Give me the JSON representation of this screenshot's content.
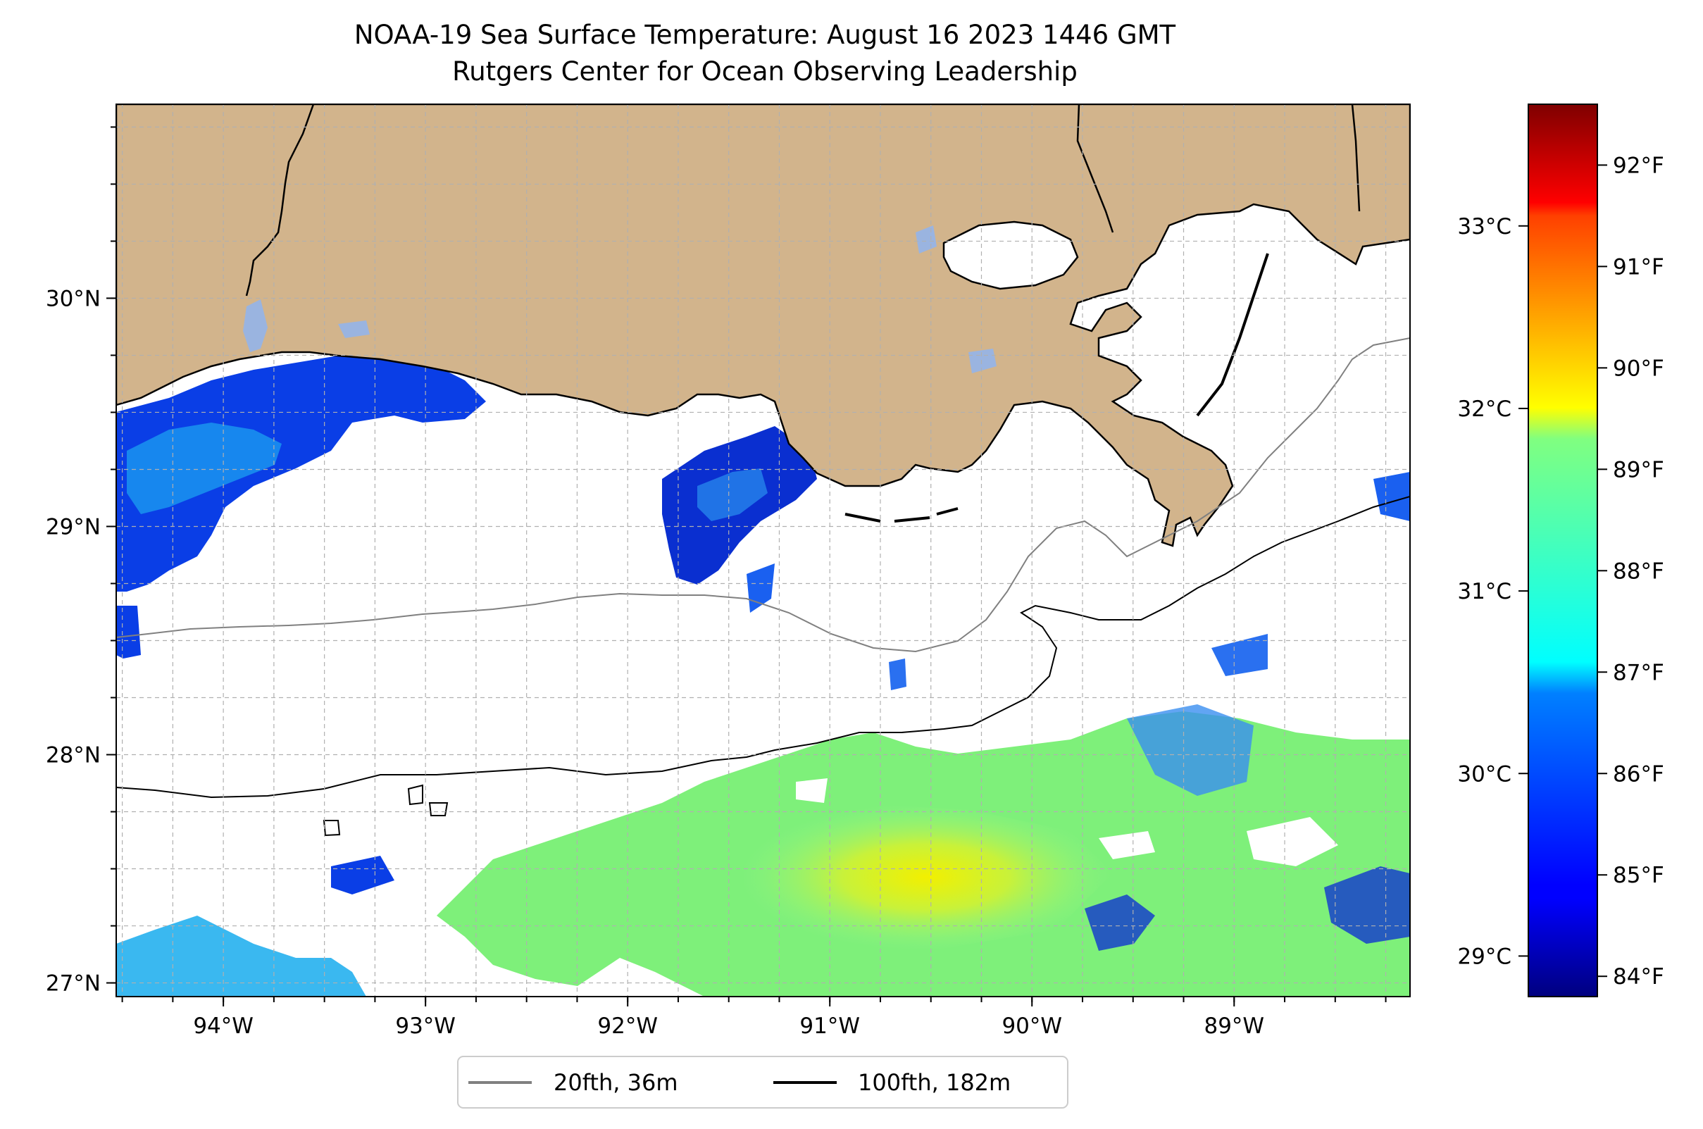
{
  "title": "NOAA-19 Sea Surface Temperature: August 16 2023 1446 GMT",
  "subtitle": "Rutgers Center for Ocean Observing Leadership",
  "map": {
    "lon_range": [
      -94.53,
      -88.13
    ],
    "lat_range": [
      26.94,
      30.85
    ],
    "x_ticks": [
      {
        "lon": -94,
        "label": "94°W"
      },
      {
        "lon": -93,
        "label": "93°W"
      },
      {
        "lon": -92,
        "label": "92°W"
      },
      {
        "lon": -91,
        "label": "91°W"
      },
      {
        "lon": -90,
        "label": "90°W"
      },
      {
        "lon": -89,
        "label": "89°W"
      }
    ],
    "y_ticks": [
      {
        "lat": 30,
        "label": "30°N"
      },
      {
        "lat": 29,
        "label": "29°N"
      },
      {
        "lat": 28,
        "label": "28°N"
      },
      {
        "lat": 27,
        "label": "27°N"
      }
    ],
    "gridlines": true,
    "colors": {
      "land": "#d2b48c",
      "water_nodata": "#ffffff",
      "contour_20fth": "#808080",
      "contour_100fth": "#000000",
      "lakes": "#9ab4e0"
    }
  },
  "legend": {
    "placement": "below-center",
    "entries": [
      {
        "label": "20fth, 36m",
        "color": "#808080"
      },
      {
        "label": "100fth, 182m",
        "color": "#000000"
      }
    ]
  },
  "colorbar": {
    "colormap": "jet",
    "range_f": [
      83.8,
      92.6
    ],
    "fahrenheit_ticks": [
      {
        "value": 84,
        "label": "84°F"
      },
      {
        "value": 85,
        "label": "85°F"
      },
      {
        "value": 86,
        "label": "86°F"
      },
      {
        "value": 87,
        "label": "87°F"
      },
      {
        "value": 88,
        "label": "88°F"
      },
      {
        "value": 89,
        "label": "89°F"
      },
      {
        "value": 90,
        "label": "90°F"
      },
      {
        "value": 91,
        "label": "91°F"
      },
      {
        "value": 92,
        "label": "92°F"
      }
    ],
    "celsius_ticks": [
      {
        "value": 29,
        "label": "29°C"
      },
      {
        "value": 30,
        "label": "30°C"
      },
      {
        "value": 31,
        "label": "31°C"
      },
      {
        "value": 32,
        "label": "32°C"
      },
      {
        "value": 33,
        "label": "33°C"
      }
    ]
  }
}
